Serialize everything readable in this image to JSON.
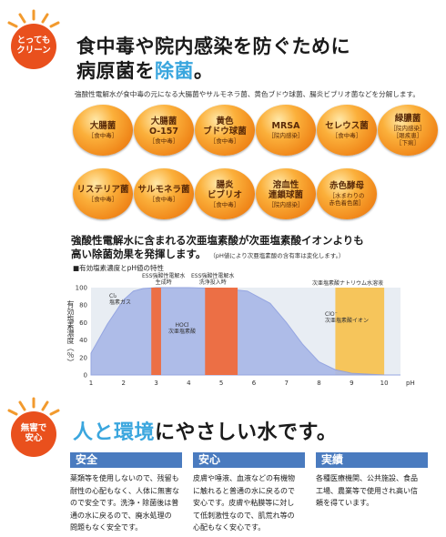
{
  "header": {
    "badge": [
      "とっても",
      "クリーン"
    ],
    "title_line1": "食中毒や院内感染を防ぐために",
    "title_line2_a": "病原菌を",
    "title_line2_b": "除菌",
    "title_line2_c": "。",
    "subline": "強酸性電解水が食中毒の元になる大腸菌やサルモネラ菌、黄色ブドウ球菌、腸炎ビブリオ菌などを分解します。"
  },
  "bacteria": [
    {
      "name": "大腸菌",
      "sub": "［食中毒］"
    },
    {
      "name": "大腸菌\nO-157",
      "sub": "［食中毒］"
    },
    {
      "name": "黄色\nブドウ球菌",
      "sub": "［食中毒］"
    },
    {
      "name": "MRSA",
      "sub": "［院内感染］"
    },
    {
      "name": "セレウス菌",
      "sub": "［食中毒］"
    },
    {
      "name": "緑膿菌",
      "sub": "［院内感染］\n［眼疾患］\n［下痢］"
    },
    {
      "name": "リステリア菌",
      "sub": "［食中毒］"
    },
    {
      "name": "サルモネラ菌",
      "sub": "［食中毒］"
    },
    {
      "name": "腸炎\nビブリオ",
      "sub": "［食中毒］"
    },
    {
      "name": "溶血性\n連鎖球菌",
      "sub": "［院内感染］"
    },
    {
      "name": "赤色酵母",
      "sub": "［水まわりの\n赤色着色菌］"
    }
  ],
  "middle": {
    "line1": "強酸性電解水に含まれる次亜塩素酸が次亜塩素酸イオンよりも",
    "line2": "高い除菌効果を発揮します。",
    "note": "（pH値により次亜塩素酸の含有率は変化します。）"
  },
  "chart_data": {
    "type": "area",
    "title": "■有効塩素濃度とpH値の特性",
    "ylabel": "有効塩素濃度（％）",
    "xlabel": "pH",
    "x_ticks": [
      "1",
      "2",
      "3",
      "4",
      "5",
      "6",
      "7",
      "8",
      "9",
      "10"
    ],
    "y_ticks": [
      "0",
      "20",
      "40",
      "60",
      "80",
      "100"
    ],
    "xlim": [
      1,
      10.5
    ],
    "ylim": [
      0,
      100
    ],
    "curve": {
      "x": [
        1.0,
        1.5,
        2.0,
        2.3,
        2.6,
        3.0,
        4.0,
        5.0,
        5.8,
        6.5,
        7.0,
        7.5,
        8.0,
        8.5,
        9.0,
        10.0,
        10.5
      ],
      "y": [
        25,
        58,
        86,
        96,
        99,
        100,
        100,
        99,
        96,
        82,
        60,
        35,
        15,
        6,
        2,
        0,
        0
      ]
    },
    "bands": [
      {
        "from": 2.85,
        "to": 3.15,
        "color": "#ef6a3c",
        "label": "ESS強酸性電解水\n生成時"
      },
      {
        "from": 4.5,
        "to": 5.5,
        "color": "#ef6a3c",
        "label": "ESS強酸性電解水\n洗浄投入時"
      },
      {
        "from": 8.5,
        "to": 10.0,
        "color": "#f7c04a",
        "label": "次亜塩素酸ナトリウム水溶液"
      }
    ],
    "annotations": [
      {
        "text": "Cl₂\n塩素ガス"
      },
      {
        "text": "HOCl\n次亜塩素酸"
      },
      {
        "text": "ClO⁻\n次亜塩素酸イオン"
      }
    ],
    "colors": {
      "curve_fill": "#aab8e8",
      "curve_top": "#8fa0e0",
      "background": "#e8edf3"
    }
  },
  "footer": {
    "badge": [
      "無害で",
      "安心"
    ],
    "title_a": "人と環境",
    "title_b": "にやさしい水です。",
    "columns": [
      {
        "head": "安全",
        "text": "薬類等を使用しないので、残留も\n耐性の心配もなく、人体に無害な\nので安全です。洗浄・除菌後は普\n通の水に戻るので、廃水処理の\n問題もなく安全です。"
      },
      {
        "head": "安心",
        "text": "皮膚や唾液、血液などの有機物\nに触れると普通の水に戻るので\n安心です。皮膚や粘膜等に対し\nて低刺激性なので、肌荒れ等の\n心配もなく安心です。"
      },
      {
        "head": "実績",
        "text": "各種医療機関、公共施設、食品\n工場、農業等で使用され高い信\n頼を得ています。"
      }
    ]
  }
}
